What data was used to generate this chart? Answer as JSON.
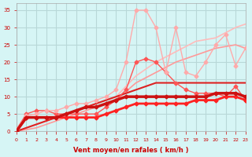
{
  "bg_color": "#d6f5f5",
  "grid_color": "#b8d8d8",
  "xlabel": "Vent moyen/en rafales ( km/h )",
  "xlabel_color": "#cc0000",
  "ylabel_color": "#cc0000",
  "xlim": [
    0,
    23
  ],
  "ylim": [
    0,
    37
  ],
  "xticks": [
    0,
    1,
    2,
    3,
    4,
    5,
    6,
    7,
    8,
    9,
    10,
    11,
    12,
    13,
    14,
    15,
    16,
    17,
    18,
    19,
    20,
    21,
    22,
    23
  ],
  "yticks": [
    0,
    5,
    10,
    15,
    20,
    25,
    30,
    35
  ],
  "series": [
    {
      "x": [
        0,
        1,
        2,
        3,
        4,
        5,
        6,
        7,
        8,
        9,
        10,
        11,
        12,
        13,
        14,
        15,
        16,
        17,
        18,
        19,
        20,
        21,
        22,
        23
      ],
      "y": [
        0,
        4,
        4,
        4,
        4,
        4,
        4,
        4,
        4,
        5,
        6,
        7,
        8,
        8,
        8,
        8,
        8,
        8,
        9,
        9,
        9,
        10,
        10,
        9
      ],
      "color": "#ff2222",
      "lw": 2.0,
      "marker": "D",
      "ms": 2.5,
      "zorder": 5
    },
    {
      "x": [
        0,
        1,
        2,
        3,
        4,
        5,
        6,
        7,
        8,
        9,
        10,
        11,
        12,
        13,
        14,
        15,
        16,
        17,
        18,
        19,
        20,
        21,
        22,
        23
      ],
      "y": [
        0,
        4,
        4,
        4,
        4,
        5,
        6,
        7,
        7,
        8,
        9,
        10,
        10,
        10,
        10,
        10,
        10,
        10,
        10,
        10,
        11,
        11,
        11,
        10
      ],
      "color": "#cc1111",
      "lw": 2.5,
      "marker": "D",
      "ms": 2.5,
      "zorder": 5
    },
    {
      "x": [
        0,
        1,
        2,
        3,
        4,
        5,
        6,
        7,
        8,
        9,
        10,
        11,
        12,
        13,
        14,
        15,
        16,
        17,
        18,
        19,
        20,
        21,
        22,
        23
      ],
      "y": [
        0,
        1,
        2,
        3,
        4,
        5,
        6,
        7,
        8,
        9,
        10,
        11,
        12,
        13,
        14,
        14,
        14,
        14,
        14,
        14,
        14,
        14,
        14,
        14
      ],
      "color": "#dd2222",
      "lw": 1.5,
      "marker": "none",
      "ms": 0,
      "zorder": 3
    },
    {
      "x": [
        0,
        2,
        4,
        6,
        8,
        10,
        12,
        14,
        16,
        18,
        20,
        22,
        23
      ],
      "y": [
        0,
        1,
        3,
        5,
        7,
        9,
        14,
        17,
        20,
        22,
        24,
        25,
        24
      ],
      "color": "#ff9999",
      "lw": 1.2,
      "marker": "none",
      "ms": 0,
      "zorder": 2
    },
    {
      "x": [
        0,
        2,
        4,
        6,
        8,
        10,
        12,
        14,
        16,
        18,
        20,
        22,
        23
      ],
      "y": [
        0,
        2,
        4,
        6,
        8,
        10,
        16,
        20,
        23,
        26,
        27,
        30,
        31
      ],
      "color": "#ffbbbb",
      "lw": 1.2,
      "marker": "none",
      "ms": 0,
      "zorder": 2
    },
    {
      "x": [
        0,
        1,
        2,
        3,
        4,
        5,
        6,
        7,
        8,
        9,
        10,
        11,
        12,
        13,
        14,
        15,
        16,
        17,
        18,
        19,
        20,
        21,
        22,
        23
      ],
      "y": [
        0.5,
        5,
        6,
        6,
        5,
        5,
        5,
        5,
        5,
        7,
        9,
        12,
        20,
        21,
        20,
        17,
        14,
        12,
        11,
        11,
        11,
        10,
        13,
        9
      ],
      "color": "#ff5555",
      "lw": 1.0,
      "marker": "D",
      "ms": 2.5,
      "zorder": 4
    },
    {
      "x": [
        0,
        1,
        2,
        3,
        4,
        5,
        6,
        7,
        8,
        9,
        10,
        11,
        12,
        13,
        14,
        15,
        16,
        17,
        18,
        19,
        20,
        21,
        22,
        23
      ],
      "y": [
        0.5,
        4.5,
        5,
        6,
        6,
        7,
        8,
        8,
        9,
        10,
        12,
        20,
        35,
        35,
        30,
        17,
        30,
        17,
        16,
        20,
        25,
        28,
        19,
        24
      ],
      "color": "#ffaaaa",
      "lw": 1.0,
      "marker": "D",
      "ms": 2.5,
      "zorder": 4
    }
  ]
}
